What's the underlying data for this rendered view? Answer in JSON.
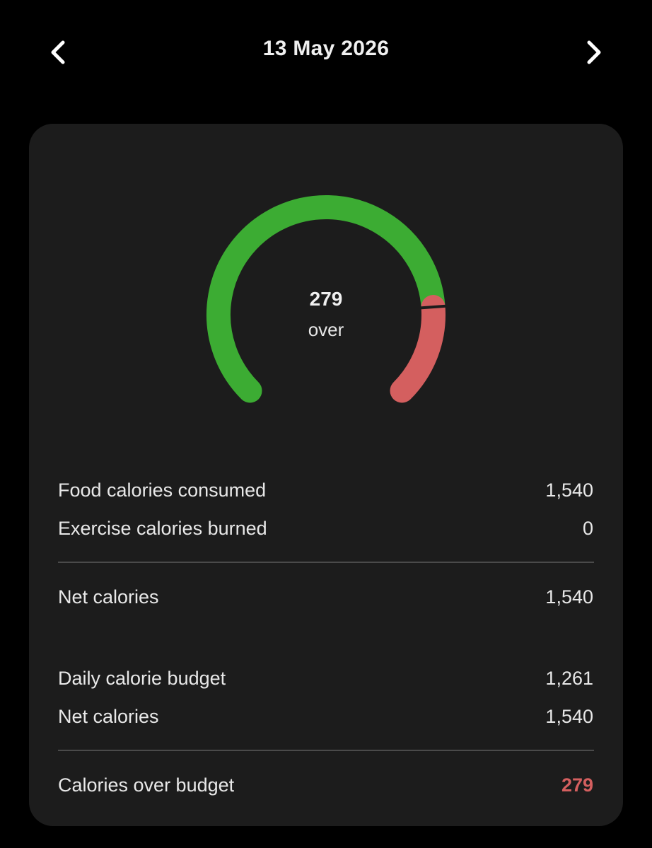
{
  "header": {
    "date": "13 May 2026",
    "prev_icon": "chevron-left-icon",
    "next_icon": "chevron-right-icon"
  },
  "gauge": {
    "value": "279",
    "label": "over",
    "budget_fraction": 0.818,
    "colors": {
      "under": "#3cac33",
      "over": "#d45f5f"
    }
  },
  "summary": {
    "food_label": "Food calories consumed",
    "food_value": "1,540",
    "exercise_label": "Exercise calories burned",
    "exercise_value": "0",
    "net_label": "Net calories",
    "net_value": "1,540",
    "budget_label": "Daily calorie budget",
    "budget_value": "1,261",
    "net2_label": "Net calories",
    "net2_value": "1,540",
    "over_label": "Calories over budget",
    "over_value": "279"
  },
  "colors": {
    "background": "#000000",
    "card": "#1c1c1c",
    "over_text": "#d45f5f"
  }
}
